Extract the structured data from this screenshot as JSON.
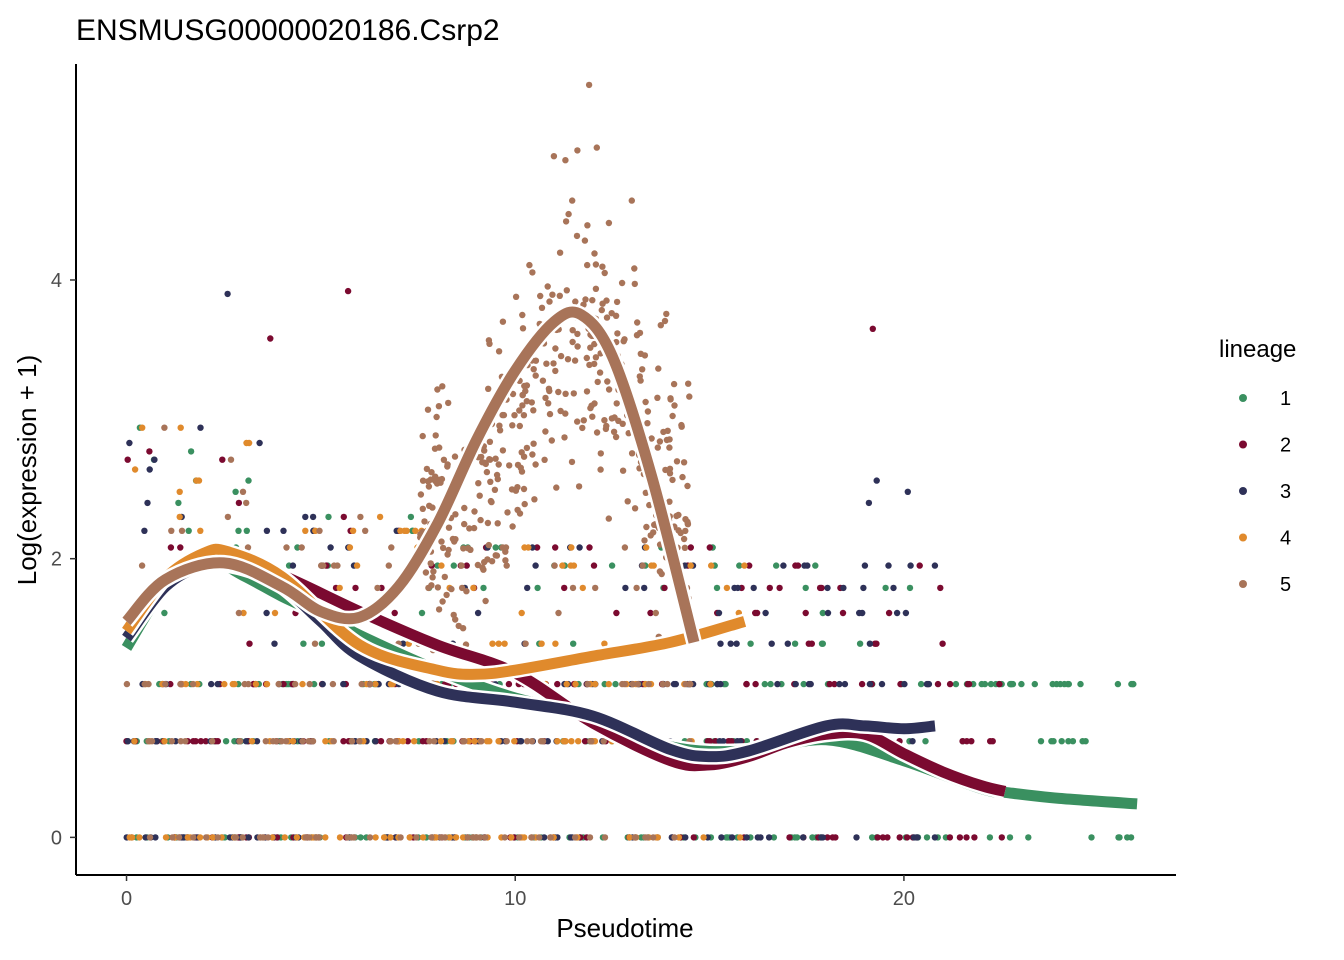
{
  "chart_data": {
    "type": "scatter",
    "title": "ENSMUSG00000020186.Csrp2",
    "xlabel": "Pseudotime",
    "ylabel": "Log(expression + 1)",
    "xlim": [
      -1.3,
      27.0
    ],
    "ylim": [
      -0.27,
      5.55
    ],
    "x_ticks": [
      0,
      10,
      20
    ],
    "x_tick_labels": [
      "0",
      "10",
      "20"
    ],
    "y_ticks": [
      0,
      2,
      4
    ],
    "y_tick_labels": [
      "0",
      "2",
      "4"
    ],
    "grid": false,
    "legend": {
      "title": "lineage",
      "placement": "right",
      "entries": [
        "1",
        "2",
        "3",
        "4",
        "5"
      ]
    },
    "colors": {
      "1": "#3a9060",
      "2": "#7b0a30",
      "3": "#2e3158",
      "4": "#e08a2c",
      "5": "#a87459"
    },
    "expression_levels": [
      0,
      0.69,
      1.1,
      1.39,
      1.61,
      1.79,
      1.95,
      2.08,
      2.2,
      2.3,
      2.4,
      2.48,
      2.56,
      2.64,
      2.71,
      2.77,
      2.83,
      2.89,
      2.94
    ],
    "lineage_ranges": {
      "1": [
        0,
        26.0
      ],
      "2": [
        0,
        22.6
      ],
      "3": [
        0,
        20.8
      ],
      "4": [
        0,
        15.9
      ],
      "5": [
        0,
        14.6
      ]
    },
    "series": [
      {
        "name": "1",
        "x": [
          0,
          1,
          2,
          3,
          4,
          5,
          6,
          8,
          10,
          12,
          14,
          16,
          18,
          20,
          22,
          22.7,
          24,
          26
        ],
        "y": [
          1.36,
          1.8,
          2.0,
          1.88,
          1.73,
          1.6,
          1.45,
          1.2,
          1.0,
          0.87,
          0.65,
          0.62,
          0.7,
          0.55,
          0.35,
          0.32,
          0.28,
          0.24
        ]
      },
      {
        "name": "2",
        "x": [
          0,
          1,
          2,
          3,
          4,
          6,
          8,
          10,
          12,
          14,
          15,
          16,
          17,
          18,
          19,
          20,
          21,
          22,
          22.6
        ],
        "y": [
          1.45,
          1.83,
          1.97,
          1.95,
          1.88,
          1.62,
          1.38,
          1.18,
          0.82,
          0.55,
          0.52,
          0.58,
          0.68,
          0.74,
          0.74,
          0.6,
          0.47,
          0.37,
          0.33
        ]
      },
      {
        "name": "3",
        "x": [
          0,
          1,
          2,
          3,
          4,
          5,
          6,
          8,
          10,
          12,
          14,
          15,
          16,
          18,
          19,
          20,
          20.8
        ],
        "y": [
          1.43,
          1.8,
          1.95,
          1.93,
          1.8,
          1.55,
          1.3,
          1.05,
          0.97,
          0.87,
          0.63,
          0.58,
          0.62,
          0.8,
          0.8,
          0.78,
          0.8
        ]
      },
      {
        "name": "4",
        "x": [
          0,
          1,
          2,
          2.6,
          4,
          6,
          8,
          9,
          10,
          12,
          14,
          15.9
        ],
        "y": [
          1.48,
          1.86,
          2.04,
          2.05,
          1.87,
          1.38,
          1.2,
          1.17,
          1.2,
          1.3,
          1.4,
          1.55
        ]
      },
      {
        "name": "5",
        "x": [
          0,
          1,
          2.5,
          4,
          5,
          6,
          7,
          8,
          9,
          10,
          11,
          11.7,
          12.5,
          13.5,
          14.6
        ],
        "y": [
          1.55,
          1.85,
          1.97,
          1.8,
          1.62,
          1.58,
          1.8,
          2.25,
          2.85,
          3.35,
          3.7,
          3.75,
          3.45,
          2.6,
          1.4
        ]
      }
    ],
    "scatter_notes": "Thousands of cells per lineage plotted at discrete expression levels; lineage 5 forms a peak cloud between pseudotime 8 and 14 reaching ~5.4."
  }
}
